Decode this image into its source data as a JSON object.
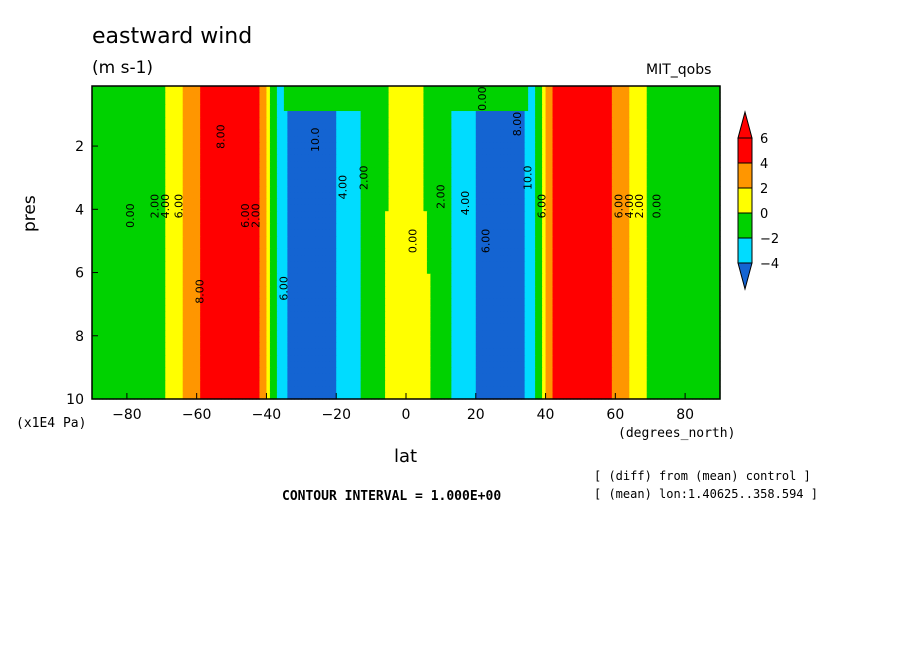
{
  "header": {
    "title": "eastward wind",
    "units": "(m s-1)",
    "source": "MIT_qobs"
  },
  "footer": {
    "contour_interval": "CONTOUR INTERVAL = 1.000E+00",
    "note_diff": "[ (diff) from (mean) control ]",
    "note_mean": "[ (mean) lon:1.40625..358.594 ]"
  },
  "chart_data": {
    "type": "heatmap",
    "title": "eastward wind",
    "units": "(m s-1)",
    "xlabel": "lat",
    "xunit": "(degrees_north)",
    "ylabel": "pres",
    "yunit": "(x1E4 Pa)",
    "xlim": [
      -90,
      90
    ],
    "ylim": [
      0.1,
      10
    ],
    "y_inverted": true,
    "xticks": [
      -80,
      -60,
      -40,
      -20,
      0,
      20,
      40,
      60,
      80
    ],
    "xtick_labels": [
      "−80",
      "−60",
      "−40",
      "−20",
      "0",
      "20",
      "40",
      "60",
      "80"
    ],
    "yticks": [
      2,
      4,
      6,
      8,
      10
    ],
    "ytick_labels": [
      "2",
      "4",
      "6",
      "8",
      "10"
    ],
    "colorbar": {
      "levels": [
        -4,
        -2,
        0,
        2,
        4,
        6
      ],
      "labels": [
        "−4",
        "−2",
        "0",
        "2",
        "4",
        "6"
      ],
      "colors": [
        "#1464d2",
        "#00dcff",
        "#00d200",
        "#ffff00",
        "#ff9600",
        "#ff0000",
        "#ff0000"
      ]
    },
    "profile_lat": [
      -90,
      -80,
      -73,
      -68,
      -65,
      -60,
      -54,
      -50,
      -45,
      -41,
      -39,
      -36,
      -33,
      -28,
      -24,
      -20,
      -15,
      -10,
      -5,
      0,
      5,
      10,
      15,
      20,
      24,
      28,
      33,
      36,
      39,
      41,
      45,
      50,
      54,
      60,
      65,
      68,
      73,
      80,
      90
    ],
    "profile_u": [
      -1,
      -1.5,
      -1,
      0.3,
      1.5,
      3.5,
      6,
      8,
      6,
      3,
      0,
      -3,
      -5,
      -7,
      -6,
      -4,
      -2.5,
      -1.5,
      0,
      0.4,
      0,
      -1.5,
      -2.5,
      -4,
      -6,
      -7,
      -5,
      -3,
      0,
      3,
      6,
      8,
      6,
      3.5,
      1.5,
      0.3,
      -1,
      -1.5,
      -1
    ],
    "contour_labels": [
      {
        "text": "0.00",
        "lat": -78,
        "p": 4.2
      },
      {
        "text": "2.00",
        "lat": -71,
        "p": 3.9
      },
      {
        "text": "4.00",
        "lat": -68,
        "p": 3.9
      },
      {
        "text": "6.00",
        "lat": -64,
        "p": 3.9
      },
      {
        "text": "8.00",
        "lat": -58,
        "p": 6.6
      },
      {
        "text": "8.00",
        "lat": -52,
        "p": 1.7
      },
      {
        "text": "6.00",
        "lat": -45,
        "p": 4.2
      },
      {
        "text": "2.00",
        "lat": -42,
        "p": 4.2
      },
      {
        "text": "6.00",
        "lat": -34,
        "p": 6.5
      },
      {
        "text": "10.0",
        "lat": -25,
        "p": 1.8
      },
      {
        "text": "4.00",
        "lat": -17,
        "p": 3.3
      },
      {
        "text": "2.00",
        "lat": -11,
        "p": 3.0
      },
      {
        "text": "0.00",
        "lat": 3,
        "p": 5.0
      },
      {
        "text": "2.00",
        "lat": 11,
        "p": 3.6
      },
      {
        "text": "4.00",
        "lat": 18,
        "p": 3.8
      },
      {
        "text": "6.00",
        "lat": 24,
        "p": 5.0
      },
      {
        "text": "0.00",
        "lat": 23,
        "p": 0.5
      },
      {
        "text": "8.00",
        "lat": 33,
        "p": 1.3
      },
      {
        "text": "10.0",
        "lat": 36,
        "p": 3.0
      },
      {
        "text": "6.00",
        "lat": 40,
        "p": 3.9
      },
      {
        "text": "6.00",
        "lat": 62,
        "p": 3.9
      },
      {
        "text": "4.00",
        "lat": 65,
        "p": 3.9
      },
      {
        "text": "2.00",
        "lat": 68,
        "p": 3.9
      },
      {
        "text": "0.00",
        "lat": 73,
        "p": 3.9
      }
    ]
  }
}
